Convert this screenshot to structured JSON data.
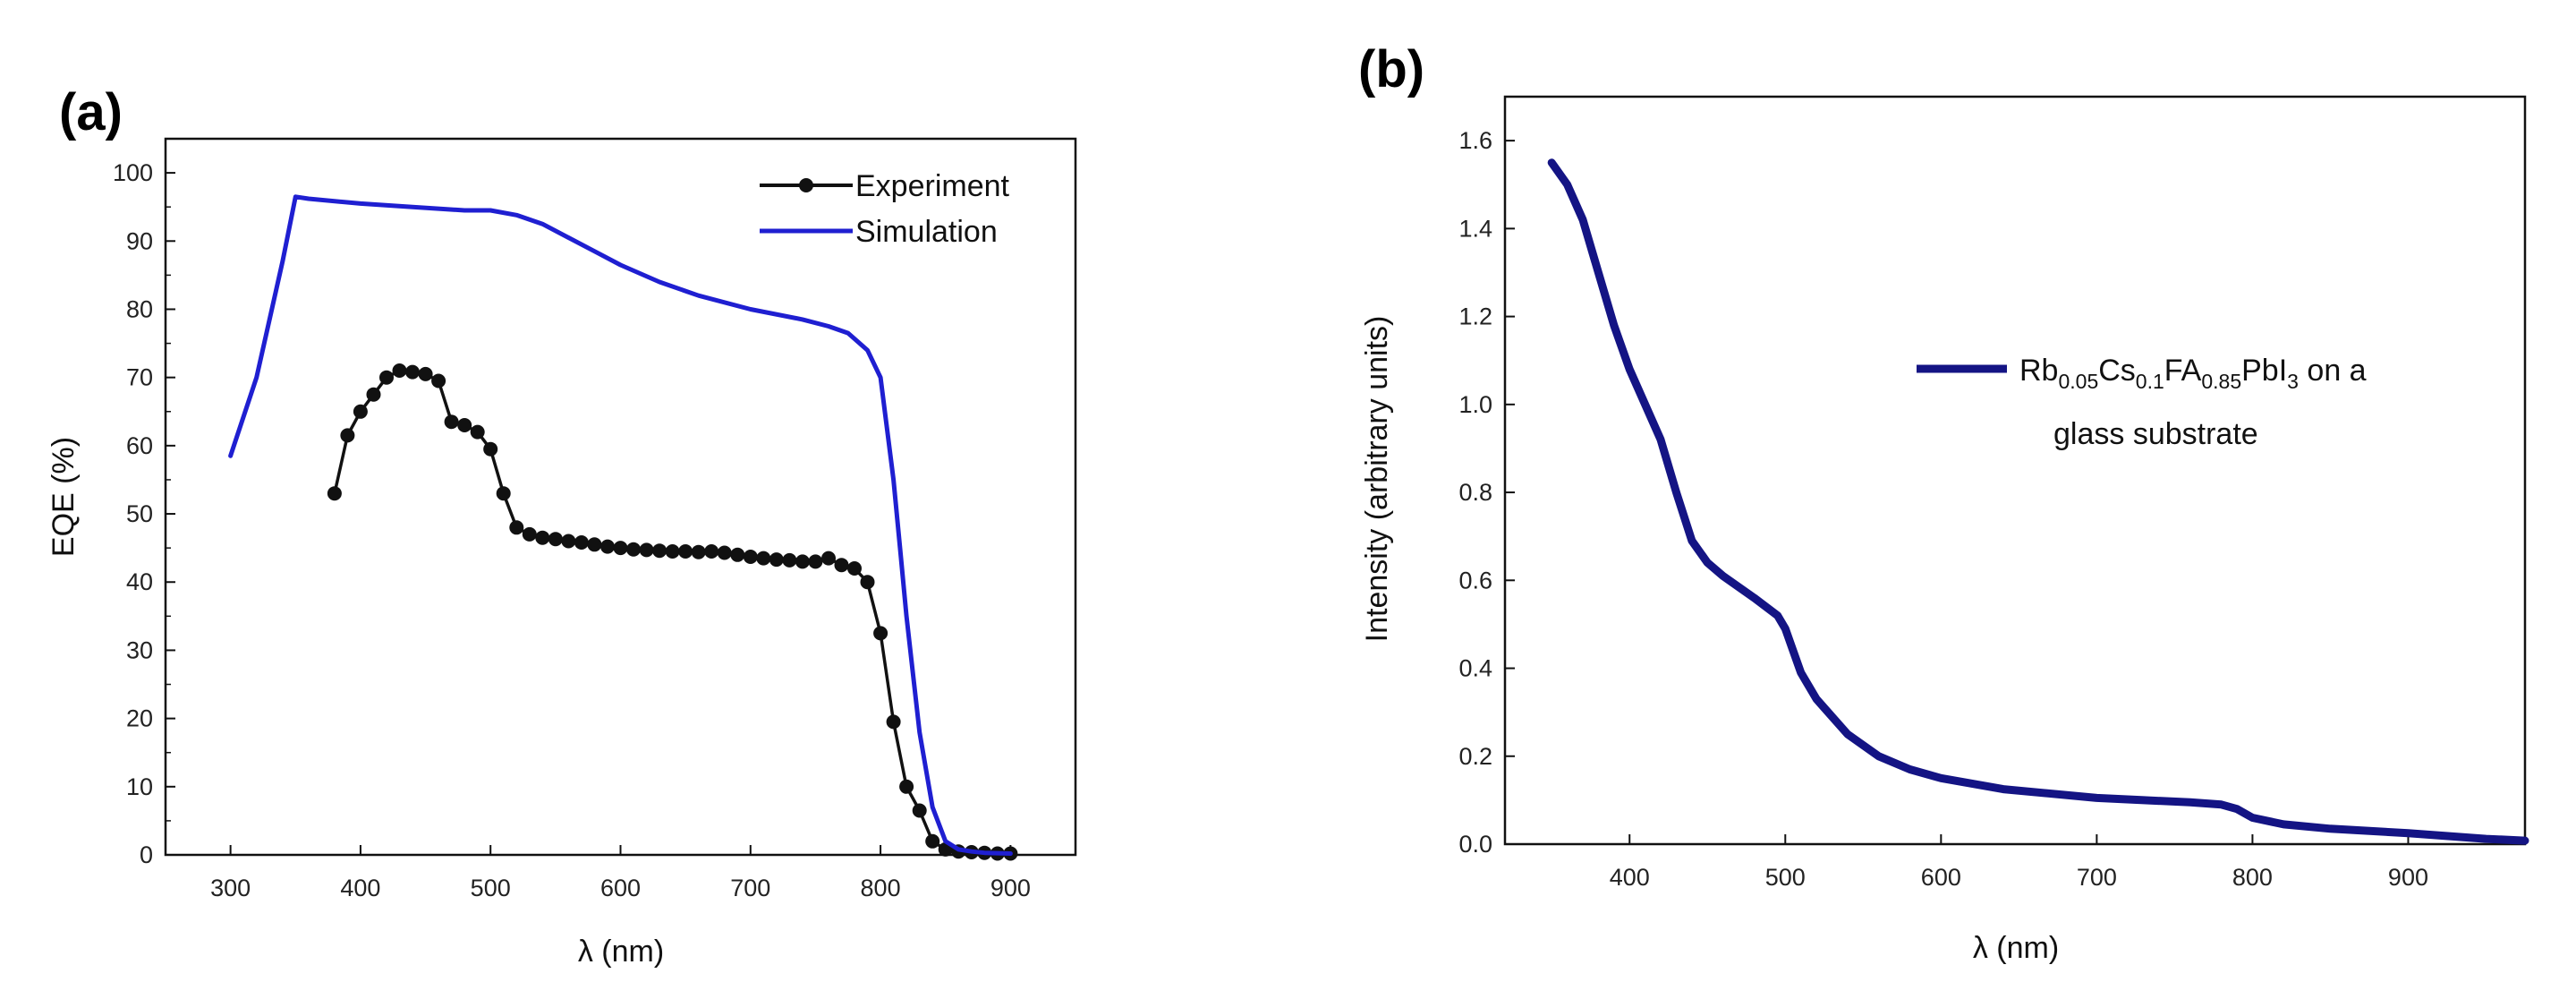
{
  "chart_data": [
    {
      "panel_label": "(a)",
      "type": "line",
      "xlabel": "λ (nm)",
      "ylabel": "EQE (%)",
      "xlim": [
        250,
        950
      ],
      "ylim": [
        0,
        105
      ],
      "xticks": [
        300,
        400,
        500,
        600,
        700,
        800,
        900
      ],
      "yticks": [
        0,
        10,
        20,
        30,
        40,
        50,
        60,
        70,
        80,
        90,
        100
      ],
      "legend_position": "top-right",
      "series": [
        {
          "name": "Experiment",
          "color": "#111111",
          "markers": true,
          "x": [
            380,
            390,
            400,
            410,
            420,
            430,
            440,
            450,
            460,
            470,
            480,
            490,
            500,
            510,
            520,
            530,
            540,
            550,
            560,
            570,
            580,
            590,
            600,
            610,
            620,
            630,
            640,
            650,
            660,
            670,
            680,
            690,
            700,
            710,
            720,
            730,
            740,
            750,
            760,
            770,
            780,
            790,
            800,
            810,
            820,
            830,
            840,
            850,
            860,
            870,
            880,
            890,
            900
          ],
          "y": [
            53,
            61.5,
            65,
            67.5,
            70,
            71,
            70.8,
            70.5,
            69.5,
            63.5,
            63,
            62,
            59.5,
            53,
            48,
            47,
            46.5,
            46.3,
            46,
            45.8,
            45.5,
            45.2,
            45,
            44.8,
            44.7,
            44.6,
            44.5,
            44.5,
            44.4,
            44.5,
            44.3,
            44,
            43.7,
            43.5,
            43.3,
            43.2,
            43,
            43,
            43.5,
            42.5,
            42,
            40,
            32.5,
            19.5,
            10,
            6.5,
            2,
            0.8,
            0.5,
            0.4,
            0.3,
            0.2,
            0.2
          ]
        },
        {
          "name": "Simulation",
          "color": "#1f1fd1",
          "markers": false,
          "x": [
            300,
            320,
            340,
            350,
            360,
            400,
            440,
            480,
            500,
            520,
            540,
            560,
            580,
            600,
            630,
            660,
            700,
            740,
            760,
            775,
            790,
            800,
            810,
            815,
            820,
            830,
            840,
            850,
            860,
            870,
            880,
            900
          ],
          "y": [
            58.5,
            70,
            87,
            96.5,
            96.2,
            95.5,
            95,
            94.5,
            94.5,
            93.8,
            92.5,
            90.5,
            88.5,
            86.5,
            84,
            82,
            80,
            78.5,
            77.5,
            76.5,
            74,
            70,
            55,
            45,
            35,
            18,
            7,
            2,
            0.8,
            0.5,
            0.3,
            0.2
          ]
        }
      ]
    },
    {
      "panel_label": "(b)",
      "type": "line",
      "xlabel": "λ (nm)",
      "ylabel": "Intensity (arbitrary units)",
      "xlim": [
        320,
        975
      ],
      "ylim": [
        0,
        1.7
      ],
      "xticks": [
        400,
        500,
        600,
        700,
        800,
        900
      ],
      "yticks": [
        0.0,
        0.2,
        0.4,
        0.6,
        0.8,
        1.0,
        1.2,
        1.4,
        1.6
      ],
      "ytick_labels": [
        "0.0",
        "0.2",
        "0.4",
        "0.6",
        "0.8",
        "1.0",
        "1.2",
        "1.4",
        "1.6"
      ],
      "legend_position": "center-right",
      "legend_main": "Rb",
      "legend_sub1": "0.05",
      "legend_mid1": "Cs",
      "legend_sub2": "0.1",
      "legend_mid2": "FA",
      "legend_sub3": "0.85",
      "legend_mid3": "PbI",
      "legend_sub4": "3",
      "legend_tail": " on a",
      "legend_line2": "glass substrate",
      "series": [
        {
          "name": "Rb0.05Cs0.1FA0.85PbI3 on a glass substrate",
          "color": "#141484",
          "x": [
            350,
            360,
            370,
            380,
            390,
            400,
            420,
            430,
            440,
            450,
            460,
            480,
            495,
            500,
            505,
            510,
            520,
            540,
            560,
            580,
            600,
            640,
            700,
            760,
            780,
            790,
            800,
            820,
            850,
            900,
            950,
            975
          ],
          "y": [
            1.55,
            1.5,
            1.42,
            1.3,
            1.18,
            1.08,
            0.92,
            0.8,
            0.69,
            0.64,
            0.61,
            0.56,
            0.52,
            0.49,
            0.44,
            0.39,
            0.33,
            0.25,
            0.2,
            0.17,
            0.15,
            0.125,
            0.105,
            0.095,
            0.09,
            0.08,
            0.06,
            0.045,
            0.035,
            0.025,
            0.012,
            0.008
          ]
        }
      ]
    }
  ]
}
